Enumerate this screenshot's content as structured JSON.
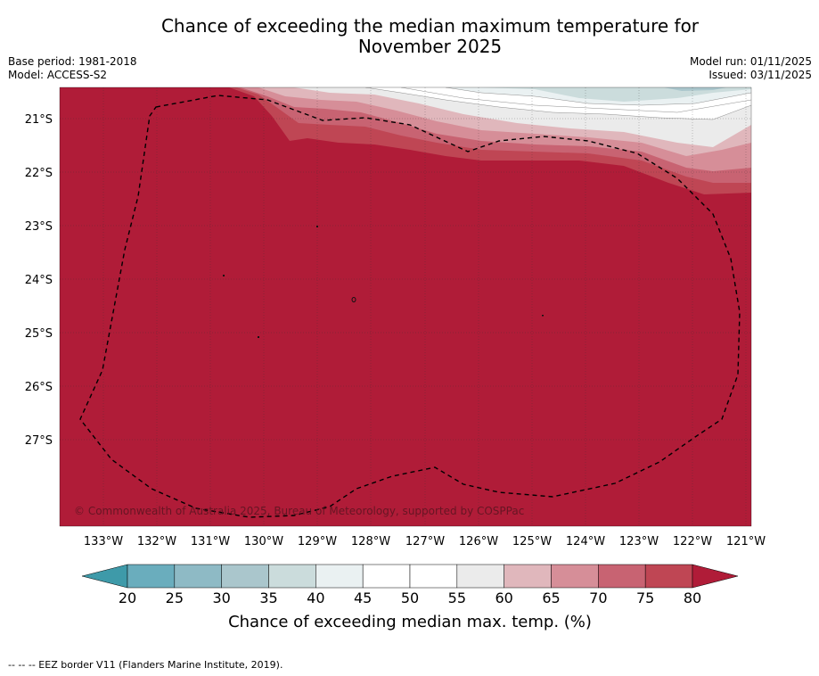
{
  "title": {
    "line1": "Chance of exceeding the median maximum temperature for",
    "line2": "November 2025"
  },
  "meta": {
    "base_period": "Base period: 1981-2018",
    "model": "Model: ACCESS-S2",
    "model_run": "Model run: 01/11/2025",
    "issued": "Issued: 03/11/2025"
  },
  "map": {
    "longitude_labels": [
      "133°W",
      "132°W",
      "131°W",
      "130°W",
      "129°W",
      "128°W",
      "127°W",
      "126°W",
      "125°W",
      "124°W",
      "123°W",
      "122°W",
      "121°W"
    ],
    "latitude_labels": [
      "21°S",
      "22°S",
      "23°S",
      "24°S",
      "25°S",
      "26°S",
      "27°S"
    ],
    "copyright": "© Commonwealth of Australia 2025, Bureau of Meteorology, supported by COSPPac",
    "eez_region": "EEZ border"
  },
  "colorbar": {
    "ticks": [
      "20",
      "25",
      "30",
      "35",
      "40",
      "45",
      "50",
      "55",
      "60",
      "65",
      "70",
      "75",
      "80"
    ],
    "label": "Chance of exceeding median max. temp. (%)",
    "colors": [
      "#6aadbd",
      "#8ebac5",
      "#aac6cc",
      "#cbdcdc",
      "#eaf1f2",
      "#ffffff",
      "#ffffff",
      "#ebebeb",
      "#e0b7bc",
      "#d68e98",
      "#c86372",
      "#bf4654"
    ],
    "under_color": "#3e9aa9",
    "over_color": "#b01c38"
  },
  "footer": "--  --  -- EEZ border V11 (Flanders Marine Institute, 2019)."
}
